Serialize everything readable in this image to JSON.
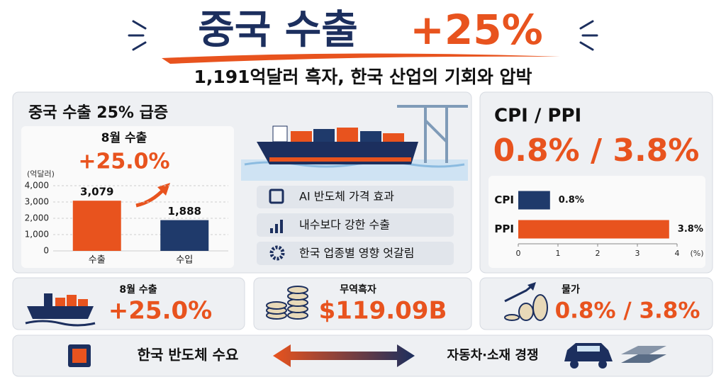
{
  "header": {
    "title": "중국 수출",
    "title_highlight": "+25%",
    "subtitle": "1,191억달러 흑자, 한국 산업의 기회와 압박"
  },
  "export_panel": {
    "title": "중국 수출 25% 급증",
    "callout_label": "8월 수출",
    "callout_value": "+25.0%",
    "chart": {
      "type": "bar",
      "unit_label": "(억달러)",
      "categories": [
        "수출",
        "수입"
      ],
      "values": [
        3079,
        1888
      ],
      "value_labels": [
        "3,079",
        "1,888"
      ],
      "colors": [
        "#e8531e",
        "#1f3a6b"
      ],
      "ylim": [
        0,
        4000
      ],
      "yticks": [
        0,
        {
          "value": 1000,
          "label": "1,000"
        },
        {
          "value": 2000,
          "label": "2,000"
        },
        {
          "value": 3000,
          "label": "3,000"
        },
        {
          "value": 4000,
          "label": "4,000"
        }
      ],
      "grid": true
    },
    "points": [
      "AI 반도체 가격 효과",
      "내수보다 강한 수출",
      "한국 업종별 영향 엇갈림"
    ]
  },
  "price_panel": {
    "title": "CPI / PPI",
    "headline": "0.8% / 3.8%",
    "chart": {
      "type": "hbar",
      "categories": [
        "CPI",
        "PPI"
      ],
      "values": [
        0.8,
        3.8
      ],
      "value_labels": [
        "0.8%",
        "3.8%"
      ],
      "colors": [
        "#1f3a6b",
        "#e8531e"
      ],
      "xlim": [
        0,
        4
      ],
      "xticks": [
        0,
        1,
        2,
        3,
        4
      ],
      "xlabel": "(%)"
    }
  },
  "stat_cards": [
    {
      "label": "8월 수출",
      "value": "+25.0%"
    },
    {
      "label": "무역흑자",
      "value": "$119.09B"
    },
    {
      "label": "물가",
      "value": "0.8% / 3.8%"
    }
  ],
  "footer": {
    "left": "한국 반도체 수요",
    "right": "자동차·소재 경쟁"
  }
}
